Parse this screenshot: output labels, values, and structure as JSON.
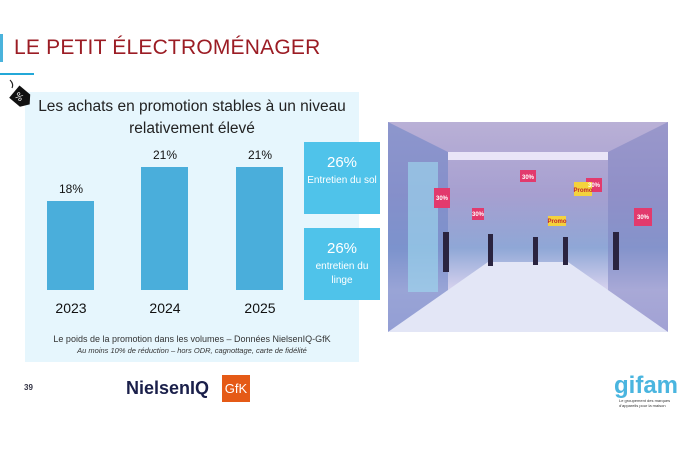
{
  "title": "LE PETIT ÉLECTROMÉNAGER",
  "headline": "Les achats en promotion stables à un niveau relativement élevé",
  "tag_icon": "percent-price-tag-icon",
  "chart_data": {
    "type": "bar",
    "categories": [
      "2023",
      "2024",
      "2025"
    ],
    "values": [
      18,
      21,
      21
    ],
    "data_labels": [
      "18%",
      "21%",
      "21%"
    ],
    "ylim": [
      10,
      21
    ],
    "grid": false,
    "color": "#4aaedb"
  },
  "highlights": [
    {
      "value": "26%",
      "label": "Entretien du sol"
    },
    {
      "value": "26%",
      "label": "entretien du linge"
    }
  ],
  "source": "Le poids de la promotion dans les volumes – Données NielsenIQ-GfK",
  "note": "Au moins 10% de réduction – hors ODR, cagnottage, carte de fidélité",
  "page_number": "39",
  "logos": {
    "nielsen": "NielsenIQ",
    "gfk": "GfK",
    "gifam": "gifam",
    "gifam_tagline": "Le groupement des marques d'appareils pour la maison"
  },
  "photo": {
    "signs": [
      "30%",
      "30%",
      "30%",
      "30%",
      "30%",
      "Promo",
      "Promo"
    ]
  }
}
